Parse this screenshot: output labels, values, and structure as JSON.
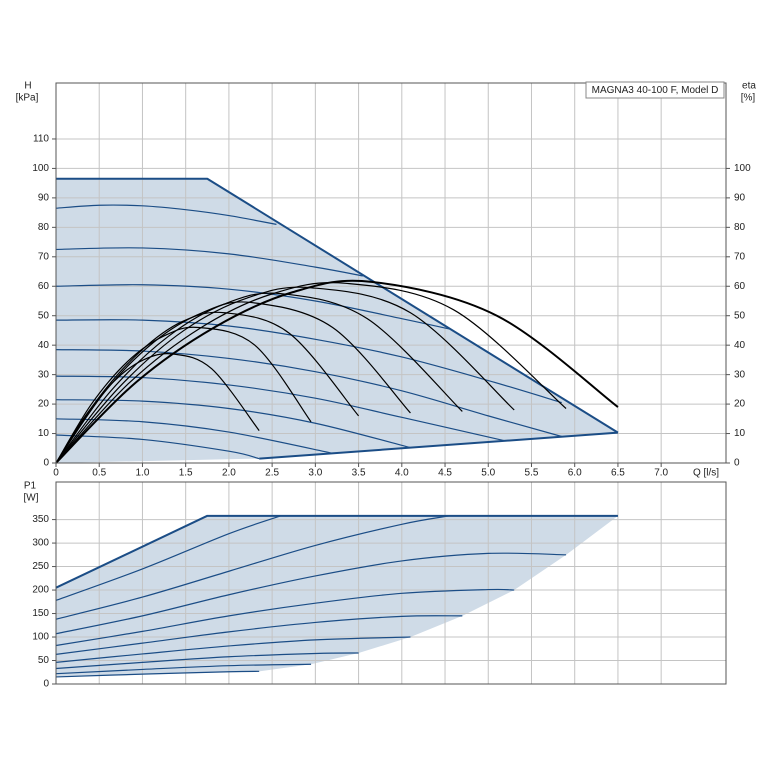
{
  "chart_data": [
    {
      "type": "line",
      "title": "MAGNA3 40-100 F, Model D",
      "ylabel": "H",
      "yunit": "[kPa]",
      "y2label": "eta",
      "y2unit": "[%]",
      "xlabel": "Q [l/s]",
      "xlim": [
        0,
        7.75
      ],
      "xticks": [
        0,
        0.5,
        {
          "value": 1,
          "label": "1.0"
        },
        1.5,
        {
          "value": 2,
          "label": "2.0"
        },
        2.5,
        {
          "value": 3,
          "label": "3.0"
        },
        3.5,
        {
          "value": 4,
          "label": "4.0"
        },
        4.5,
        {
          "value": 5,
          "label": "5.0"
        },
        5.5,
        {
          "value": 6,
          "label": "6.0"
        },
        6.5,
        {
          "value": 7,
          "label": "7.0"
        }
      ],
      "ylim": [
        0,
        129
      ],
      "yticks": [
        0,
        10,
        20,
        30,
        40,
        50,
        60,
        70,
        80,
        90,
        100,
        110
      ],
      "y2lim": [
        0,
        129
      ],
      "y2ticks": [
        0,
        10,
        20,
        30,
        40,
        50,
        60,
        70,
        80,
        90,
        100
      ],
      "grid": true,
      "area": {
        "color": "#cfdbe7",
        "x": [
          0,
          0,
          1.75,
          6.5,
          2.35,
          0
        ],
        "values": [
          0,
          96.5,
          96.5,
          10.3,
          1.5,
          0
        ]
      },
      "series": [
        {
          "color": "#1b4d86",
          "line_width": 2,
          "smooth": false,
          "x": [
            0,
            1.75,
            6.5
          ],
          "values": [
            96.5,
            96.5,
            10.3
          ]
        },
        {
          "color": "#1b4d86",
          "line_width": 2,
          "smooth": false,
          "x": [
            2.35,
            6.5
          ],
          "values": [
            1.5,
            10.3
          ]
        },
        {
          "color": "#1b4d86",
          "x": [
            0,
            0.5,
            1,
            1.5,
            2,
            2.55
          ],
          "values": [
            86.5,
            87.5,
            87.3,
            86,
            84,
            81
          ]
        },
        {
          "color": "#1b4d86",
          "x": [
            0,
            1,
            2,
            3,
            3.55
          ],
          "values": [
            72.5,
            73,
            71,
            66.5,
            63.5
          ]
        },
        {
          "color": "#1b4d86",
          "x": [
            0,
            1,
            2,
            3,
            4,
            4.55
          ],
          "values": [
            60,
            60.5,
            59,
            55,
            49,
            45.5
          ]
        },
        {
          "color": "#1b4d86",
          "x": [
            0,
            1,
            2,
            3,
            4,
            5,
            5.85
          ],
          "values": [
            48.5,
            48.5,
            46.5,
            42,
            36,
            28,
            20.5
          ]
        },
        {
          "color": "#1b4d86",
          "x": [
            0,
            1,
            2,
            3,
            4,
            5,
            5.85
          ],
          "values": [
            38.5,
            38,
            35.5,
            31,
            24.5,
            16,
            9
          ]
        },
        {
          "color": "#1b4d86",
          "x": [
            0,
            1,
            2,
            3,
            4,
            5.2
          ],
          "values": [
            29.5,
            29,
            26.5,
            22,
            15.5,
            7.5
          ]
        },
        {
          "color": "#1b4d86",
          "x": [
            0,
            1,
            2,
            3,
            4.1
          ],
          "values": [
            21.5,
            21,
            18.5,
            13.5,
            5.2
          ]
        },
        {
          "color": "#1b4d86",
          "x": [
            0,
            1,
            2,
            3.2
          ],
          "values": [
            15,
            14,
            10.5,
            3.3
          ]
        },
        {
          "color": "#1b4d86",
          "x": [
            0,
            1,
            2,
            2.35
          ],
          "values": [
            9.5,
            8,
            4,
            1.5
          ]
        },
        {
          "color": "#000000",
          "axis": "y2",
          "x": [
            0,
            0.34,
            0.68,
            1.01,
            1.35,
            1.8,
            2.35
          ],
          "values": [
            0,
            16,
            28,
            35,
            37,
            32,
            11
          ]
        },
        {
          "color": "#000000",
          "axis": "y2",
          "x": [
            0,
            0.41,
            0.83,
            1.24,
            1.65,
            2.3,
            2.95
          ],
          "values": [
            0,
            20,
            34.5,
            43,
            46,
            40,
            14
          ]
        },
        {
          "color": "#000000",
          "axis": "y2",
          "x": [
            0,
            0.49,
            0.98,
            1.46,
            1.95,
            2.7,
            3.5
          ],
          "values": [
            0,
            22,
            38,
            48,
            51,
            44,
            16
          ]
        },
        {
          "color": "#000000",
          "axis": "y2",
          "x": [
            0,
            0.56,
            1.13,
            1.69,
            2.25,
            3.2,
            4.1
          ],
          "values": [
            0,
            24,
            41,
            51,
            54.5,
            46,
            17
          ]
        },
        {
          "color": "#000000",
          "axis": "y2",
          "x": [
            0,
            0.65,
            1.3,
            1.95,
            2.6,
            3.6,
            4.7
          ],
          "values": [
            0,
            25,
            43,
            54,
            57.5,
            49,
            17.5
          ]
        },
        {
          "color": "#000000",
          "axis": "y2",
          "x": [
            0,
            0.74,
            1.48,
            2.21,
            2.95,
            4.1,
            5.3
          ],
          "values": [
            0,
            26,
            45,
            56,
            59.5,
            51,
            18
          ]
        },
        {
          "color": "#000000",
          "axis": "y2",
          "x": [
            0,
            0.84,
            1.68,
            2.51,
            3.35,
            4.6,
            5.9
          ],
          "values": [
            0,
            27,
            46,
            57.5,
            61,
            52,
            18.5
          ]
        },
        {
          "color": "#000000",
          "axis": "y2",
          "line_width": 2,
          "x": [
            0,
            0.91,
            1.83,
            2.74,
            3.65,
            5.1,
            6.5
          ],
          "values": [
            0,
            27,
            46,
            58,
            61.5,
            50,
            19
          ]
        }
      ]
    },
    {
      "type": "line",
      "ylabel": "P1",
      "yunit": "[W]",
      "xlim": [
        0,
        7.75
      ],
      "ylim": [
        0,
        430
      ],
      "yticks": [
        0,
        50,
        100,
        150,
        200,
        250,
        300,
        350
      ],
      "grid": true,
      "area": {
        "color": "#cfdbe7",
        "x": [
          0,
          0,
          1.75,
          6.5,
          5.9,
          5.3,
          4.7,
          4.1,
          3.5,
          2.95,
          2.35,
          0
        ],
        "values": [
          0,
          205,
          358,
          358,
          275,
          200,
          145,
          100,
          66,
          42,
          27,
          15
        ]
      },
      "series": [
        {
          "color": "#1b4d86",
          "line_width": 2,
          "smooth": false,
          "x": [
            0,
            1.75,
            6.5
          ],
          "values": [
            205,
            358,
            358
          ]
        },
        {
          "color": "#1b4d86",
          "x": [
            0,
            1,
            2,
            2.6
          ],
          "values": [
            178,
            245,
            320,
            358
          ]
        },
        {
          "color": "#1b4d86",
          "x": [
            0,
            1,
            2,
            3,
            4,
            4.55
          ],
          "values": [
            138,
            185,
            240,
            295,
            340,
            358
          ]
        },
        {
          "color": "#1b4d86",
          "x": [
            0,
            1,
            2,
            3,
            4,
            5,
            5.9
          ],
          "values": [
            107,
            145,
            190,
            230,
            262,
            278,
            275
          ]
        },
        {
          "color": "#1b4d86",
          "x": [
            0,
            1,
            2,
            3,
            4,
            5,
            5.3
          ],
          "values": [
            82,
            112,
            145,
            172,
            193,
            201,
            200
          ]
        },
        {
          "color": "#1b4d86",
          "x": [
            0,
            1,
            2,
            3,
            4,
            4.7
          ],
          "values": [
            63,
            87,
            111,
            131,
            144,
            145
          ]
        },
        {
          "color": "#1b4d86",
          "x": [
            0,
            1,
            2,
            3,
            4.1
          ],
          "values": [
            46,
            64,
            81,
            94,
            100
          ]
        },
        {
          "color": "#1b4d86",
          "x": [
            0,
            1,
            2,
            3,
            3.5
          ],
          "values": [
            33,
            46,
            58,
            65,
            66
          ]
        },
        {
          "color": "#1b4d86",
          "x": [
            0,
            1,
            2,
            2.95
          ],
          "values": [
            22,
            31,
            39,
            42
          ]
        },
        {
          "color": "#1b4d86",
          "x": [
            0,
            1,
            2,
            2.35
          ],
          "values": [
            15,
            21,
            26,
            27
          ]
        }
      ]
    }
  ]
}
